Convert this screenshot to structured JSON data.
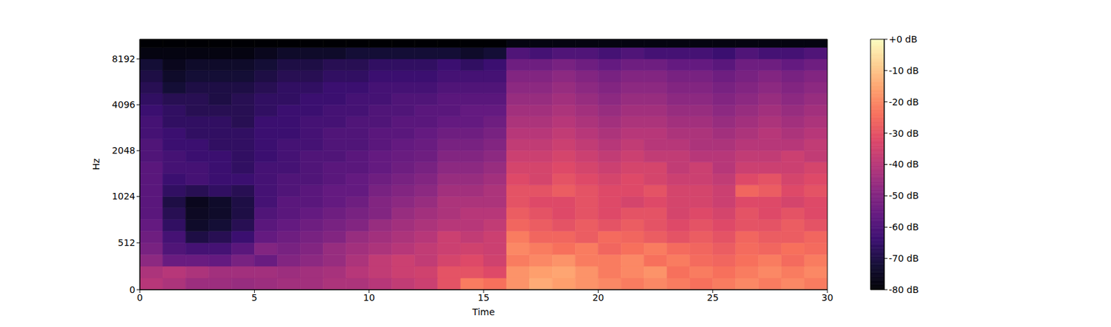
{
  "chart_data": {
    "type": "heatmap",
    "x_label": "Time",
    "y_label": "Hz",
    "xlim": [
      0,
      30
    ],
    "xticks": [
      0,
      5,
      10,
      15,
      20,
      25,
      30
    ],
    "ylim": [
      0,
      11025
    ],
    "yticks": [
      0,
      512,
      1024,
      2048,
      4096,
      8192
    ],
    "log": "y",
    "x_bins": [
      0,
      1,
      2,
      3,
      4,
      5,
      6,
      7,
      8,
      9,
      10,
      11,
      12,
      13,
      14,
      15,
      16,
      17,
      18,
      19,
      20,
      21,
      22,
      23,
      24,
      25,
      26,
      27,
      28,
      29,
      30
    ],
    "y_bins": [
      0,
      128,
      256,
      384,
      512,
      640,
      768,
      896,
      1024,
      1218,
      1448,
      1722,
      2048,
      2436,
      2896,
      3444,
      4096,
      4871,
      5793,
      6889,
      8192,
      9742,
      11025
    ],
    "cells": [
      [
        -40,
        -42,
        -45,
        -45,
        -46,
        -45,
        -44,
        -44,
        -42,
        -42,
        -40,
        -38,
        -36,
        -30,
        -22,
        -24,
        -18,
        -14,
        -16,
        -18,
        -20,
        -22,
        -20,
        -22,
        -24,
        -22,
        -20,
        -22,
        -20,
        -22
      ],
      [
        -42,
        -40,
        -42,
        -44,
        -44,
        -44,
        -45,
        -44,
        -43,
        -40,
        -38,
        -36,
        -35,
        -30,
        -30,
        -32,
        -18,
        -16,
        -15,
        -18,
        -22,
        -20,
        -18,
        -24,
        -22,
        -24,
        -22,
        -20,
        -22,
        -20
      ],
      [
        -48,
        -55,
        -55,
        -56,
        -52,
        -55,
        -50,
        -48,
        -46,
        -42,
        -38,
        -36,
        -38,
        -34,
        -32,
        -35,
        -22,
        -20,
        -18,
        -22,
        -22,
        -20,
        -24,
        -22,
        -25,
        -26,
        -24,
        -22,
        -25,
        -22
      ],
      [
        -52,
        -60,
        -62,
        -62,
        -58,
        -50,
        -52,
        -50,
        -46,
        -44,
        -42,
        -40,
        -38,
        -36,
        -35,
        -36,
        -20,
        -22,
        -24,
        -22,
        -26,
        -24,
        -22,
        -25,
        -26,
        -28,
        -25,
        -26,
        -24,
        -25
      ],
      [
        -54,
        -62,
        -70,
        -68,
        -64,
        -56,
        -54,
        -52,
        -50,
        -46,
        -44,
        -42,
        -40,
        -36,
        -38,
        -36,
        -22,
        -26,
        -26,
        -28,
        -25,
        -26,
        -28,
        -30,
        -28,
        -30,
        -26,
        -28,
        -28,
        -26
      ],
      [
        -56,
        -66,
        -74,
        -72,
        -68,
        -58,
        -56,
        -54,
        -52,
        -50,
        -46,
        -44,
        -42,
        -40,
        -40,
        -38,
        -26,
        -28,
        -30,
        -28,
        -30,
        -28,
        -30,
        -32,
        -30,
        -32,
        -30,
        -30,
        -28,
        -30
      ],
      [
        -58,
        -68,
        -75,
        -74,
        -70,
        -60,
        -58,
        -56,
        -54,
        -52,
        -50,
        -46,
        -44,
        -42,
        -40,
        -40,
        -28,
        -30,
        -32,
        -30,
        -32,
        -30,
        -30,
        -34,
        -32,
        -34,
        -30,
        -32,
        -30,
        -32
      ],
      [
        -58,
        -70,
        -76,
        -74,
        -70,
        -62,
        -58,
        -58,
        -56,
        -54,
        -50,
        -48,
        -46,
        -42,
        -42,
        -42,
        -30,
        -32,
        -32,
        -30,
        -32,
        -34,
        -32,
        -34,
        -34,
        -36,
        -32,
        -32,
        -34,
        -32
      ],
      [
        -58,
        -66,
        -68,
        -66,
        -68,
        -62,
        -60,
        -58,
        -56,
        -56,
        -52,
        -50,
        -48,
        -44,
        -44,
        -42,
        -30,
        -30,
        -28,
        -30,
        -32,
        -32,
        -30,
        -34,
        -34,
        -36,
        -26,
        -28,
        -32,
        -30
      ],
      [
        -58,
        -64,
        -62,
        -64,
        -64,
        -62,
        -60,
        -60,
        -58,
        -56,
        -54,
        -52,
        -50,
        -46,
        -46,
        -44,
        -32,
        -34,
        -30,
        -32,
        -34,
        -32,
        -34,
        -36,
        -36,
        -38,
        -32,
        -30,
        -34,
        -32
      ],
      [
        -58,
        -62,
        -62,
        -64,
        -66,
        -62,
        -62,
        -60,
        -58,
        -58,
        -56,
        -54,
        -52,
        -48,
        -48,
        -46,
        -34,
        -34,
        -32,
        -34,
        -36,
        -34,
        -34,
        -38,
        -36,
        -40,
        -36,
        -36,
        -36,
        -34
      ],
      [
        -60,
        -62,
        -64,
        -64,
        -66,
        -64,
        -62,
        -60,
        -60,
        -58,
        -56,
        -55,
        -54,
        -50,
        -50,
        -48,
        -36,
        -36,
        -34,
        -36,
        -38,
        -36,
        -38,
        -38,
        -40,
        -40,
        -38,
        -38,
        -36,
        -38
      ],
      [
        -60,
        -64,
        -64,
        -66,
        -66,
        -64,
        -62,
        -62,
        -60,
        -60,
        -58,
        -56,
        -55,
        -52,
        -52,
        -50,
        -38,
        -38,
        -36,
        -38,
        -40,
        -38,
        -40,
        -40,
        -42,
        -42,
        -40,
        -40,
        -40,
        -38
      ],
      [
        -62,
        -64,
        -66,
        -66,
        -66,
        -64,
        -64,
        -62,
        -60,
        -60,
        -58,
        -58,
        -56,
        -54,
        -54,
        -52,
        -40,
        -40,
        -38,
        -40,
        -42,
        -40,
        -40,
        -42,
        -42,
        -44,
        -42,
        -40,
        -42,
        -40
      ],
      [
        -62,
        -66,
        -66,
        -66,
        -68,
        -64,
        -64,
        -62,
        -62,
        -60,
        -60,
        -58,
        -58,
        -56,
        -56,
        -54,
        -42,
        -42,
        -40,
        -42,
        -44,
        -42,
        -42,
        -44,
        -44,
        -46,
        -44,
        -42,
        -44,
        -42
      ],
      [
        -64,
        -66,
        -68,
        -68,
        -68,
        -66,
        -64,
        -64,
        -62,
        -62,
        -60,
        -60,
        -58,
        -58,
        -56,
        -56,
        -44,
        -44,
        -42,
        -44,
        -46,
        -44,
        -44,
        -46,
        -46,
        -48,
        -46,
        -44,
        -46,
        -44
      ],
      [
        -66,
        -68,
        -68,
        -70,
        -68,
        -66,
        -66,
        -64,
        -64,
        -62,
        -62,
        -60,
        -60,
        -58,
        -58,
        -58,
        -46,
        -46,
        -44,
        -46,
        -48,
        -46,
        -46,
        -48,
        -48,
        -50,
        -48,
        -46,
        -48,
        -46
      ],
      [
        -68,
        -72,
        -70,
        -70,
        -70,
        -68,
        -66,
        -66,
        -64,
        -64,
        -62,
        -62,
        -62,
        -60,
        -60,
        -60,
        -48,
        -48,
        -46,
        -48,
        -50,
        -48,
        -48,
        -50,
        -50,
        -52,
        -50,
        -48,
        -50,
        -48
      ],
      [
        -70,
        -74,
        -72,
        -72,
        -72,
        -70,
        -68,
        -68,
        -66,
        -66,
        -64,
        -64,
        -64,
        -62,
        -62,
        -62,
        -50,
        -50,
        -48,
        -50,
        -52,
        -50,
        -50,
        -52,
        -52,
        -54,
        -52,
        -50,
        -52,
        -50
      ],
      [
        -72,
        -76,
        -74,
        -74,
        -74,
        -72,
        -70,
        -70,
        -68,
        -68,
        -66,
        -66,
        -66,
        -64,
        -66,
        -64,
        -54,
        -54,
        -52,
        -54,
        -56,
        -54,
        -54,
        -56,
        -56,
        -58,
        -54,
        -54,
        -56,
        -54
      ],
      [
        -78,
        -78,
        -78,
        -78,
        -78,
        -76,
        -74,
        -74,
        -74,
        -72,
        -72,
        -72,
        -72,
        -72,
        -74,
        -72,
        -60,
        -62,
        -60,
        -60,
        -62,
        -60,
        -62,
        -62,
        -62,
        -64,
        -60,
        -62,
        -62,
        -60
      ],
      [
        -80,
        -80,
        -80,
        -80,
        -80,
        -80,
        -80,
        -80,
        -80,
        -80,
        -80,
        -80,
        -80,
        -80,
        -80,
        -80,
        -78,
        -78,
        -78,
        -78,
        -78,
        -78,
        -78,
        -78,
        -78,
        -78,
        -78,
        -78,
        -78,
        -78
      ]
    ],
    "colorbar_range": [
      -80,
      0
    ],
    "colorbar_ticks": [
      {
        "value": 0,
        "label": "+0 dB"
      },
      {
        "value": -10,
        "label": "-10 dB"
      },
      {
        "value": -20,
        "label": "-20 dB"
      },
      {
        "value": -30,
        "label": "-30 dB"
      },
      {
        "value": -40,
        "label": "-40 dB"
      },
      {
        "value": -50,
        "label": "-50 dB"
      },
      {
        "value": -60,
        "label": "-60 dB"
      },
      {
        "value": -70,
        "label": "-70 dB"
      },
      {
        "value": -80,
        "label": "-80 dB"
      }
    ]
  }
}
